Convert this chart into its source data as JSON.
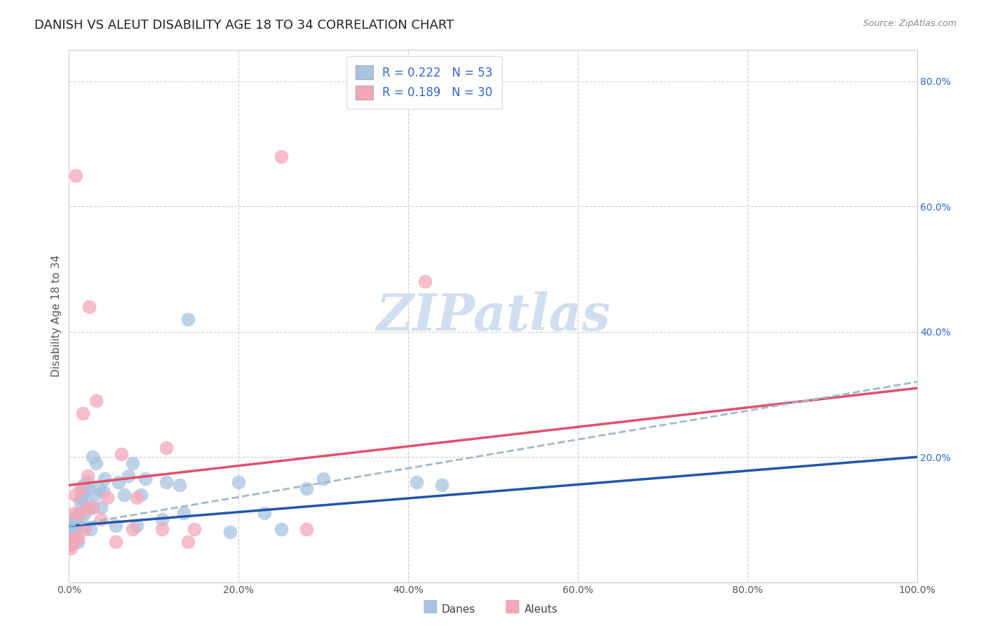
{
  "title": "DANISH VS ALEUT DISABILITY AGE 18 TO 34 CORRELATION CHART",
  "source": "Source: ZipAtlas.com",
  "ylabel": "Disability Age 18 to 34",
  "xlim": [
    0,
    1.0
  ],
  "ylim": [
    0,
    0.85
  ],
  "xtick_labels": [
    "0.0%",
    "20.0%",
    "40.0%",
    "60.0%",
    "80.0%",
    "100.0%"
  ],
  "xtick_vals": [
    0,
    0.2,
    0.4,
    0.6,
    0.8,
    1.0
  ],
  "ytick_vals": [
    0.2,
    0.4,
    0.6,
    0.8
  ],
  "ytick_labels": [
    "20.0%",
    "40.0%",
    "60.0%",
    "80.0%"
  ],
  "danes_R": 0.222,
  "danes_N": 53,
  "aleuts_R": 0.189,
  "aleuts_N": 30,
  "dane_color": "#a8c4e0",
  "aleut_color": "#f4a7b9",
  "dane_line_color": "#2255aa",
  "aleut_line_color": "#e0506a",
  "legend_text_color": "#3366cc",
  "danes_x": [
    0.002,
    0.003,
    0.004,
    0.004,
    0.005,
    0.005,
    0.006,
    0.007,
    0.007,
    0.008,
    0.01,
    0.011,
    0.012,
    0.013,
    0.014,
    0.015,
    0.016,
    0.017,
    0.018,
    0.019,
    0.02,
    0.021,
    0.022,
    0.025,
    0.027,
    0.028,
    0.03,
    0.032,
    0.035,
    0.038,
    0.04,
    0.042,
    0.055,
    0.058,
    0.065,
    0.07,
    0.075,
    0.08,
    0.085,
    0.09,
    0.11,
    0.115,
    0.13,
    0.135,
    0.14,
    0.19,
    0.2,
    0.23,
    0.25,
    0.28,
    0.3,
    0.41,
    0.44
  ],
  "danes_y": [
    0.06,
    0.065,
    0.07,
    0.075,
    0.08,
    0.085,
    0.09,
    0.095,
    0.1,
    0.105,
    0.065,
    0.09,
    0.11,
    0.13,
    0.135,
    0.14,
    0.15,
    0.155,
    0.09,
    0.11,
    0.13,
    0.15,
    0.16,
    0.085,
    0.12,
    0.2,
    0.14,
    0.19,
    0.15,
    0.12,
    0.145,
    0.165,
    0.09,
    0.16,
    0.14,
    0.17,
    0.19,
    0.09,
    0.14,
    0.165,
    0.1,
    0.16,
    0.155,
    0.11,
    0.42,
    0.08,
    0.16,
    0.11,
    0.085,
    0.15,
    0.165,
    0.16,
    0.155
  ],
  "aleuts_x": [
    0.002,
    0.003,
    0.004,
    0.005,
    0.006,
    0.007,
    0.008,
    0.01,
    0.012,
    0.014,
    0.016,
    0.018,
    0.02,
    0.022,
    0.024,
    0.028,
    0.032,
    0.038,
    0.045,
    0.055,
    0.062,
    0.075,
    0.08,
    0.11,
    0.115,
    0.14,
    0.148,
    0.25,
    0.28,
    0.42
  ],
  "aleuts_y": [
    0.055,
    0.06,
    0.065,
    0.07,
    0.11,
    0.14,
    0.65,
    0.07,
    0.11,
    0.15,
    0.27,
    0.085,
    0.118,
    0.17,
    0.44,
    0.12,
    0.29,
    0.1,
    0.135,
    0.065,
    0.205,
    0.085,
    0.135,
    0.085,
    0.215,
    0.065,
    0.085,
    0.68,
    0.085,
    0.48
  ],
  "background_color": "#ffffff",
  "grid_color": "#cccccc",
  "title_fontsize": 13,
  "axis_label_fontsize": 11,
  "tick_fontsize": 10,
  "legend_fontsize": 12,
  "watermark_text": "ZIPatlas",
  "watermark_color": "#d0dff0",
  "watermark_fontsize": 52,
  "dane_trend": [
    0.0,
    1.0,
    0.09,
    0.2
  ],
  "aleut_trend": [
    0.0,
    1.0,
    0.155,
    0.31
  ],
  "dashed_trend": [
    0.0,
    1.0,
    0.09,
    0.32
  ]
}
